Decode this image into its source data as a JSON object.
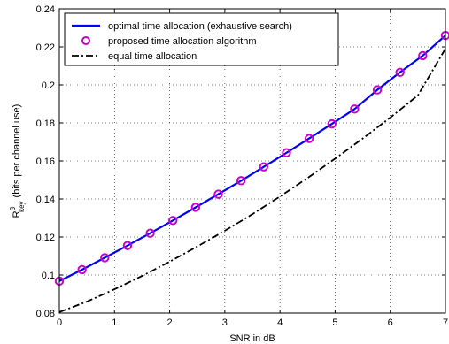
{
  "chart_data": {
    "type": "line",
    "xlabel": "SNR in dB",
    "ylabel": {
      "main": "R",
      "superscript": "3",
      "subscript": "key",
      "units": "(bits per channel use)"
    },
    "xlim": [
      0,
      7
    ],
    "ylim": [
      0.08,
      0.24
    ],
    "xticks": [
      0,
      1,
      2,
      3,
      4,
      5,
      6,
      7
    ],
    "yticks": [
      0.08,
      0.1,
      0.12,
      0.14,
      0.16,
      0.18,
      0.2,
      0.22,
      0.24
    ],
    "grid": true,
    "legend_position": "top-left",
    "series": [
      {
        "name": "optimal time allocation (exhaustive search)",
        "style": "solid",
        "color": "#0000ff",
        "x": [
          0,
          0.4118,
          0.8235,
          1.2353,
          1.6471,
          2.0588,
          2.4706,
          2.8824,
          3.2941,
          3.7059,
          4.1176,
          4.5294,
          4.9412,
          5.3529,
          5.7647,
          6.1765,
          6.5882,
          7.0
        ],
        "values": [
          0.0968,
          0.1028,
          0.1091,
          0.1155,
          0.122,
          0.1287,
          0.1356,
          0.1425,
          0.1496,
          0.1569,
          0.1643,
          0.1718,
          0.1795,
          0.1873,
          0.1974,
          0.2066,
          0.2154,
          0.226
        ]
      },
      {
        "name": "proposed time allocation algorithm",
        "style": "markers",
        "marker": "circle",
        "color": "#cc00cc",
        "x": [
          0,
          0.4118,
          0.8235,
          1.2353,
          1.6471,
          2.0588,
          2.4706,
          2.8824,
          3.2941,
          3.7059,
          4.1176,
          4.5294,
          4.9412,
          5.3529,
          5.7647,
          6.1765,
          6.5882,
          7.0
        ],
        "values": [
          0.0968,
          0.1028,
          0.1091,
          0.1155,
          0.122,
          0.1287,
          0.1356,
          0.1425,
          0.1496,
          0.1569,
          0.1643,
          0.1718,
          0.1795,
          0.1873,
          0.1974,
          0.2066,
          0.2154,
          0.226
        ]
      },
      {
        "name": "equal time allocation",
        "style": "dashdot",
        "color": "#000000",
        "x": [
          0,
          0.5,
          1,
          1.5,
          2,
          2.5,
          3,
          3.5,
          4,
          4.5,
          5,
          5.5,
          6,
          6.5,
          7
        ],
        "values": [
          0.0805,
          0.086,
          0.0925,
          0.0995,
          0.107,
          0.115,
          0.1233,
          0.132,
          0.1413,
          0.151,
          0.1612,
          0.1718,
          0.1828,
          0.1945,
          0.219
        ]
      }
    ]
  }
}
